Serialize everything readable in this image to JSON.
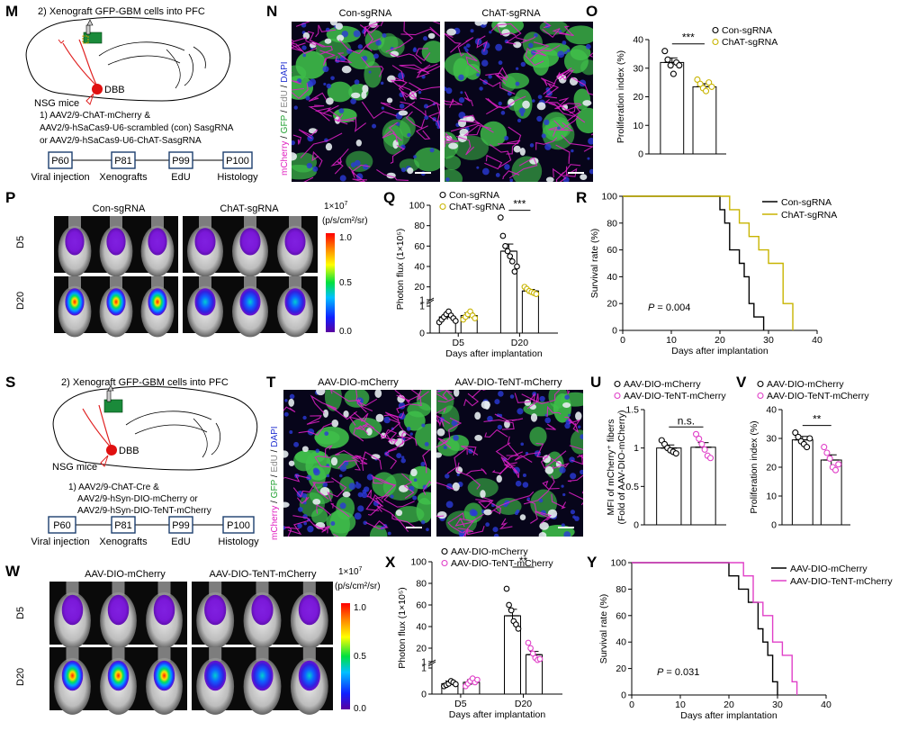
{
  "panelM": {
    "label": "M",
    "step2": "2) Xenograft GFP-GBM cells into PFC",
    "mice": "NSG mice",
    "region": "DBB",
    "step1_l1": "1) AAV2/9-ChAT-mCherry &",
    "step1_l2": "AAV2/9-hSaCas9-U6-scrambled (con) SasgRNA",
    "step1_l3": "or AAV2/9-hSaCas9-U6-ChAT-SasgRNA",
    "timeline": [
      "P60",
      "P81",
      "P99",
      "P100"
    ],
    "timeline_labels": [
      "Viral injection",
      "Xenografts",
      "EdU",
      "Histology"
    ]
  },
  "panelN": {
    "label": "N",
    "stain": [
      "mCherry",
      "GFP",
      "EdU",
      "DAPI"
    ],
    "groups": [
      "Con-sgRNA",
      "ChAT-sgRNA"
    ]
  },
  "panelO": {
    "label": "O",
    "legend": [
      "Con-sgRNA",
      "ChAT-sgRNA"
    ],
    "sig": "***"
  },
  "panelP": {
    "label": "P",
    "groups": [
      "Con-sgRNA",
      "ChAT-sgRNA"
    ],
    "rows": [
      "D5",
      "D20"
    ],
    "scale_title_1": "1×10",
    "scale_title_exp": "7",
    "scale_title_2": "(p/s/cm²/sr)",
    "scale_ticks": [
      "1.0",
      "0.5",
      "0.0"
    ]
  },
  "panelQ": {
    "label": "Q",
    "legend": [
      "Con-sgRNA",
      "ChAT-sgRNA"
    ],
    "sig": "***"
  },
  "panelR": {
    "label": "R",
    "legend": [
      "Con-sgRNA",
      "ChAT-sgRNA"
    ],
    "pvalue_label": "P",
    "pvalue": "= 0.004"
  },
  "panelS": {
    "label": "S",
    "step2": "2) Xenograft GFP-GBM cells into PFC",
    "mice": "NSG mice",
    "region": "DBB",
    "step1_l1": "1) AAV2/9-ChAT-Cre &",
    "step1_l2": "AAV2/9-hSyn-DIO-mCherry or",
    "step1_l3": "AAV2/9-hSyn-DIO-TeNT-mCherry",
    "timeline": [
      "P60",
      "P81",
      "P99",
      "P100"
    ],
    "timeline_labels": [
      "Viral injection",
      "Xenografts",
      "EdU",
      "Histology"
    ]
  },
  "panelT": {
    "label": "T",
    "stain": [
      "mCherry",
      "GFP",
      "EdU",
      "DAPI"
    ],
    "groups": [
      "AAV-DIO-mCherry",
      "AAV-DIO-TeNT-mCherry"
    ]
  },
  "panelU": {
    "label": "U",
    "legend": [
      "AAV-DIO-mCherry",
      "AAV-DIO-TeNT-mCherry"
    ],
    "sig": "n.s."
  },
  "panelV": {
    "label": "V",
    "legend": [
      "AAV-DIO-mCherry",
      "AAV-DIO-TeNT-mCherry"
    ],
    "sig": "**"
  },
  "panelW": {
    "label": "W",
    "groups": [
      "AAV-DIO-mCherry",
      "AAV-DIO-TeNT-mCherry"
    ],
    "rows": [
      "D5",
      "D20"
    ],
    "scale_title_1": "1×10",
    "scale_title_exp": "7",
    "scale_title_2": "(p/s/cm²/sr)",
    "scale_ticks": [
      "1.0",
      "0.5",
      "0.0"
    ]
  },
  "panelX": {
    "label": "X",
    "legend": [
      "AAV-DIO-mCherry",
      "AAV-DIO-TeNT-mCherry"
    ],
    "sig": "**"
  },
  "panelY": {
    "label": "Y",
    "legend": [
      "AAV-DIO-mCherry",
      "AAV-DIO-TeNT-mCherry"
    ],
    "pvalue_label": "P",
    "pvalue": "= 0.031"
  },
  "colors": {
    "con": "#000000",
    "chat": "#c8b400",
    "tent": "#e040c8"
  },
  "chart_data": [
    {
      "id": "O",
      "type": "bar",
      "ylabel": "Proliferation index (%)",
      "ylim": [
        0,
        40
      ],
      "yticks": [
        0,
        10,
        20,
        30,
        40
      ],
      "categories": [
        "Con-sgRNA",
        "ChAT-sgRNA"
      ],
      "values": [
        32,
        23.5
      ],
      "errors": [
        1.6,
        1.1
      ],
      "points": [
        [
          36,
          33,
          31,
          28,
          32,
          31
        ],
        [
          26,
          24.5,
          23,
          22,
          25,
          23.5
        ]
      ]
    },
    {
      "id": "Q",
      "type": "bar",
      "xlabel": "Days after implantation",
      "ylabel": "Photon flux (1×10⁵)",
      "ylim_low": [
        0,
        1
      ],
      "ylim_high": [
        10,
        100
      ],
      "yticks_low": [
        0,
        1
      ],
      "yticks_high": [
        1,
        20,
        40,
        60,
        80,
        100
      ],
      "categories": [
        "D5",
        "D20"
      ],
      "series": [
        {
          "name": "Con-sgRNA",
          "values": [
            0.6,
            55
          ],
          "errors": [
            0.1,
            7
          ],
          "points": [
            [
              0.4,
              0.5,
              0.6,
              0.7,
              0.8,
              0.65,
              0.55,
              0.45
            ],
            [
              88,
              70,
              60,
              55,
              50,
              45,
              35,
              40
            ]
          ]
        },
        {
          "name": "ChAT-sgRNA",
          "values": [
            0.65,
            16
          ],
          "errors": [
            0.1,
            1.5
          ],
          "points": [
            [
              0.5,
              0.6,
              0.7,
              0.8,
              0.65,
              0.55
            ],
            [
              20,
              18,
              16,
              15,
              14,
              13
            ]
          ]
        }
      ]
    },
    {
      "id": "R",
      "type": "line",
      "xlabel": "Days after implantation",
      "ylabel": "Survival rate (%)",
      "xlim": [
        0,
        40
      ],
      "ylim": [
        0,
        100
      ],
      "xticks": [
        0,
        10,
        20,
        30,
        40
      ],
      "yticks": [
        0,
        20,
        40,
        60,
        80,
        100
      ],
      "series": [
        {
          "name": "Con-sgRNA",
          "x": [
            0,
            20,
            20,
            21,
            21,
            22,
            22,
            24,
            24,
            25,
            25,
            26,
            26,
            27,
            27,
            29,
            29
          ],
          "y": [
            100,
            100,
            90,
            90,
            80,
            80,
            60,
            60,
            50,
            50,
            40,
            40,
            20,
            20,
            10,
            10,
            0
          ]
        },
        {
          "name": "ChAT-sgRNA",
          "x": [
            0,
            22,
            22,
            24,
            24,
            26,
            26,
            28,
            28,
            30,
            30,
            33,
            33,
            35,
            35
          ],
          "y": [
            100,
            100,
            90,
            90,
            80,
            80,
            70,
            70,
            60,
            60,
            50,
            50,
            20,
            20,
            0
          ]
        }
      ]
    },
    {
      "id": "U",
      "type": "bar",
      "ylabel": "MFI of mCherry⁺ fibers (Fold of AAV-DIO-mCherry)",
      "ylim": [
        0,
        1.5
      ],
      "yticks": [
        0,
        0.5,
        1.0,
        1.5
      ],
      "categories": [
        "AAV-DIO-mCherry",
        "AAV-DIO-TeNT-mCherry"
      ],
      "values": [
        1.0,
        1.01
      ],
      "errors": [
        0.04,
        0.06
      ],
      "points": [
        [
          1.1,
          1.05,
          1.0,
          0.97,
          0.95,
          0.93
        ],
        [
          1.18,
          1.12,
          1.05,
          0.98,
          0.9,
          0.87
        ]
      ]
    },
    {
      "id": "V",
      "type": "bar",
      "ylabel": "Proliferation index (%)",
      "ylim": [
        0,
        40
      ],
      "yticks": [
        0,
        10,
        20,
        30,
        40
      ],
      "categories": [
        "AAV-DIO-mCherry",
        "AAV-DIO-TeNT-mCherry"
      ],
      "values": [
        29.5,
        22.5
      ],
      "errors": [
        1.2,
        1.8
      ],
      "points": [
        [
          32,
          30.5,
          29,
          28,
          27,
          30
        ],
        [
          27,
          25,
          23,
          20,
          19,
          21
        ]
      ]
    },
    {
      "id": "X",
      "type": "bar",
      "xlabel": "Days after implantation",
      "ylabel": "Photon flux (1×10⁵)",
      "ylim_low": [
        0,
        1
      ],
      "ylim_high": [
        10,
        100
      ],
      "yticks_low": [
        0,
        1
      ],
      "yticks_high": [
        1,
        20,
        40,
        60,
        80,
        100
      ],
      "categories": [
        "D5",
        "D20"
      ],
      "series": [
        {
          "name": "AAV-DIO-mCherry",
          "values": [
            0.4,
            50
          ],
          "errors": [
            0.1,
            6
          ],
          "points": [
            [
              0.3,
              0.35,
              0.4,
              0.5,
              0.45,
              0.38
            ],
            [
              75,
              60,
              55,
              45,
              42,
              38
            ]
          ]
        },
        {
          "name": "AAV-DIO-TeNT-mCherry",
          "values": [
            0.45,
            14
          ],
          "errors": [
            0.1,
            3
          ],
          "points": [
            [
              0.3,
              0.4,
              0.5,
              0.6,
              0.45,
              0.55
            ],
            [
              25,
              20,
              15,
              11,
              9,
              10
            ]
          ]
        }
      ]
    },
    {
      "id": "Y",
      "type": "line",
      "xlabel": "Days after implantation",
      "ylabel": "Survival rate (%)",
      "xlim": [
        0,
        40
      ],
      "ylim": [
        0,
        100
      ],
      "xticks": [
        0,
        10,
        20,
        30,
        40
      ],
      "yticks": [
        0,
        20,
        40,
        60,
        80,
        100
      ],
      "series": [
        {
          "name": "AAV-DIO-mCherry",
          "x": [
            0,
            20,
            20,
            22,
            22,
            24,
            24,
            26,
            26,
            27,
            27,
            28,
            28,
            29,
            29,
            30,
            30
          ],
          "y": [
            100,
            100,
            90,
            90,
            80,
            80,
            70,
            70,
            50,
            50,
            40,
            40,
            30,
            30,
            10,
            10,
            0
          ]
        },
        {
          "name": "AAV-DIO-TeNT-mCherry",
          "x": [
            0,
            23,
            23,
            25,
            25,
            27,
            27,
            29,
            29,
            31,
            31,
            33,
            33,
            34,
            34
          ],
          "y": [
            100,
            100,
            90,
            90,
            70,
            70,
            60,
            60,
            40,
            40,
            30,
            30,
            10,
            10,
            0
          ]
        }
      ]
    }
  ]
}
